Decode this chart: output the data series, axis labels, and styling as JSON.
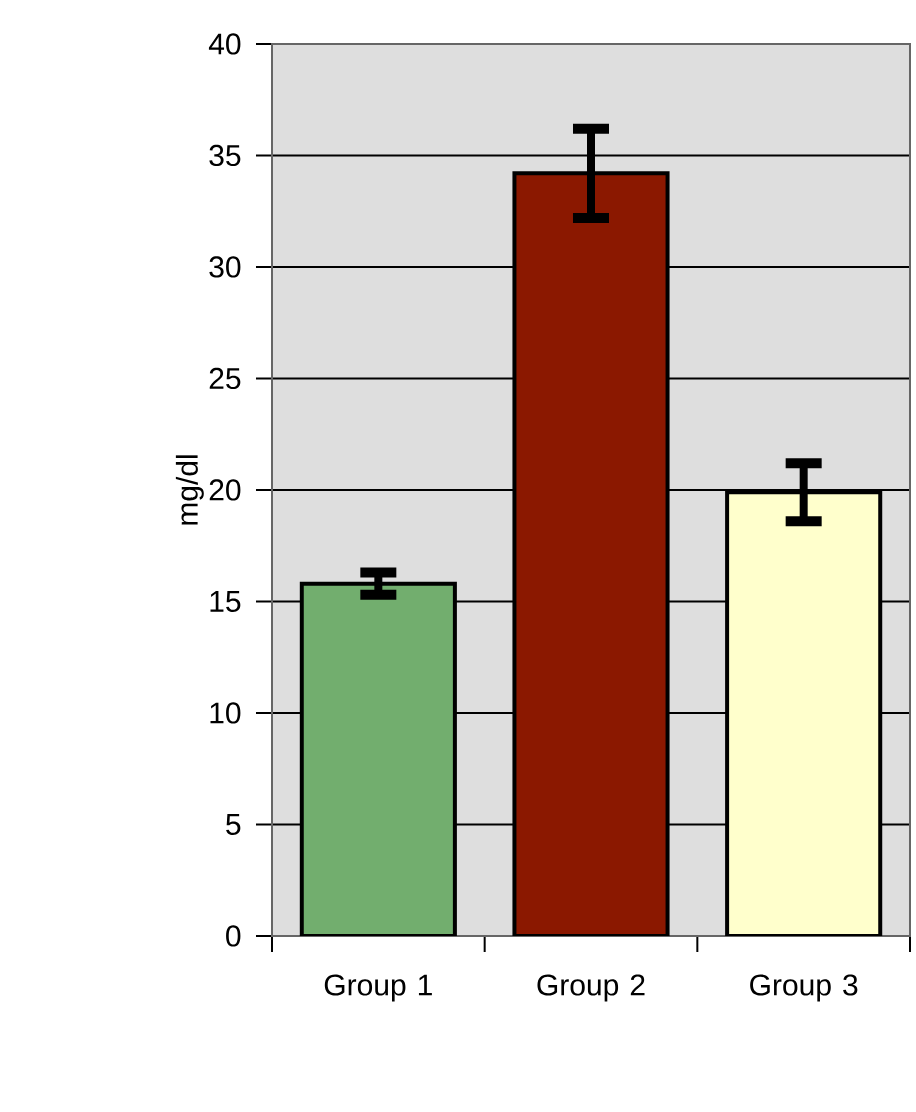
{
  "chart_data": {
    "type": "bar",
    "ylabel": "mg/dl",
    "categories": [
      "Group 1",
      "Group 2",
      "Group 3"
    ],
    "values": [
      15.8,
      34.2,
      19.9
    ],
    "errors": [
      0.5,
      2,
      1.3
    ],
    "colors": [
      "#72ae6e",
      "#8b1800",
      "#ffffcc"
    ],
    "ylim": [
      0,
      40
    ],
    "yticks": [
      0,
      5,
      10,
      15,
      20,
      25,
      30,
      35,
      40
    ],
    "grid": "y"
  }
}
